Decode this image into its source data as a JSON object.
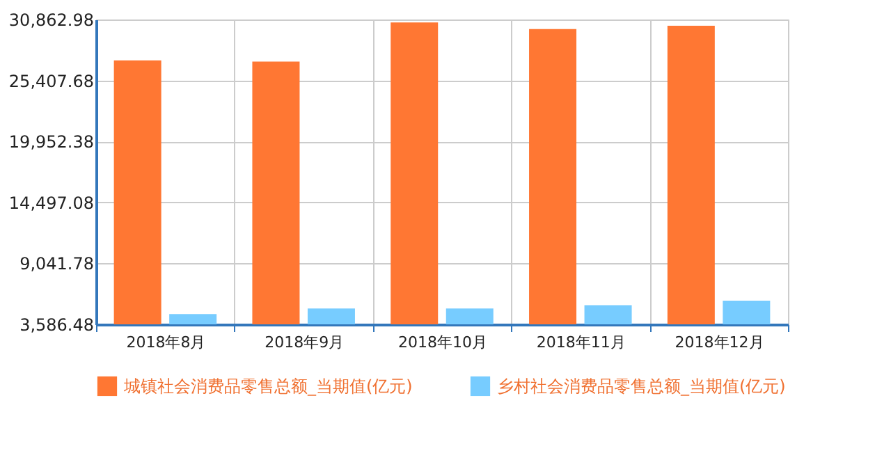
{
  "chart_data": {
    "type": "bar",
    "categories": [
      "2018年8月",
      "2018年9月",
      "2018年10月",
      "2018年11月",
      "2018年12月"
    ],
    "series": [
      {
        "name": "城镇社会消费品零售总额_当期值(亿元)",
        "color": "#ff7733",
        "values": [
          27200,
          27100,
          30600,
          30000,
          30300
        ]
      },
      {
        "name": "乡村社会消费品零售总额_当期值(亿元)",
        "color": "#77ccff",
        "values": [
          4500,
          5000,
          5000,
          5300,
          5700
        ]
      }
    ],
    "ylim": [
      3586.48,
      30862.98
    ],
    "yticks": [
      {
        "value": 3586.48,
        "label": "3,586.48"
      },
      {
        "value": 9041.78,
        "label": "9,041.78"
      },
      {
        "value": 14497.08,
        "label": "14,497.08"
      },
      {
        "value": 19952.38,
        "label": "19,952.38"
      },
      {
        "value": 25407.68,
        "label": "25,407.68"
      },
      {
        "value": 30862.98,
        "label": "30,862.98"
      }
    ],
    "grid": true,
    "legend": "bottom"
  }
}
